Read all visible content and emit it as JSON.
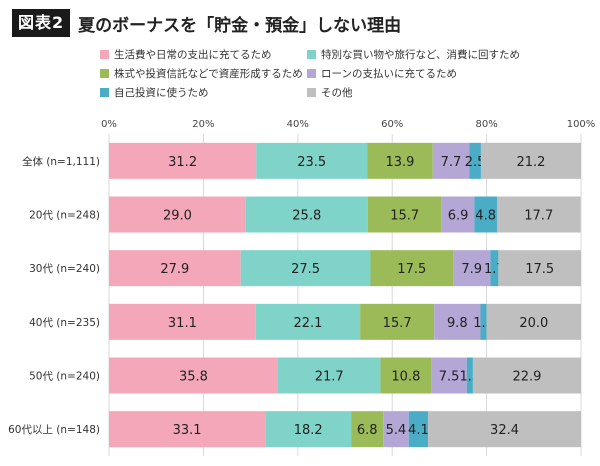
{
  "header": {
    "badge": "図表2",
    "title": "夏のボーナスを「貯金・預金」しない理由"
  },
  "chart_data": {
    "type": "bar",
    "orientation": "horizontal",
    "stacked": true,
    "xlim": [
      0,
      100
    ],
    "x_tick_labels": [
      "0%",
      "20%",
      "40%",
      "60%",
      "80%",
      "100%"
    ],
    "categories": [
      "全体 (n=1,111)",
      "20代 (n=248)",
      "30代 (n=240)",
      "40代 (n=235)",
      "50代 (n=240)",
      "60代以上 (n=148)"
    ],
    "series": [
      {
        "name": "生活費や日常の支出に充てるため",
        "color": "#f4a7b9",
        "values": [
          31.2,
          29.0,
          27.9,
          31.1,
          35.8,
          33.1
        ]
      },
      {
        "name": "特別な買い物や旅行など、消費に回すため",
        "color": "#7fd3c8",
        "values": [
          23.5,
          25.8,
          27.5,
          22.1,
          21.7,
          18.2
        ]
      },
      {
        "name": "株式や投資信託などで資産形成するため",
        "color": "#9bbb59",
        "values": [
          13.9,
          15.7,
          17.5,
          15.7,
          10.8,
          6.8
        ]
      },
      {
        "name": "ローンの支払いに充てるため",
        "color": "#b4a7d6",
        "values": [
          7.7,
          6.9,
          7.9,
          9.8,
          7.5,
          5.4
        ]
      },
      {
        "name": "自己投資に使うため",
        "color": "#4bacc6",
        "values": [
          2.5,
          4.8,
          1.7,
          1.3,
          1.3,
          4.1
        ]
      },
      {
        "name": "その他",
        "color": "#bfbfbf",
        "values": [
          21.2,
          17.7,
          17.5,
          20.0,
          22.9,
          32.4
        ]
      }
    ],
    "value_labels": [
      [
        "31.2",
        "23.5",
        "13.9",
        "7.7",
        "2.5",
        "21.2"
      ],
      [
        "29.0",
        "25.8",
        "15.7",
        "6.9",
        "4.8",
        "17.7"
      ],
      [
        "27.9",
        "27.5",
        "17.5",
        "7.9",
        "1.7",
        "17.5"
      ],
      [
        "31.1",
        "22.1",
        "15.7",
        "9.8",
        "1.3",
        "20.0"
      ],
      [
        "35.8",
        "21.7",
        "10.8",
        "7.5",
        "1.3",
        "22.9"
      ],
      [
        "33.1",
        "18.2",
        "6.8",
        "5.4",
        "4.1",
        "32.4"
      ]
    ],
    "grid": true,
    "legend_position": "top"
  }
}
